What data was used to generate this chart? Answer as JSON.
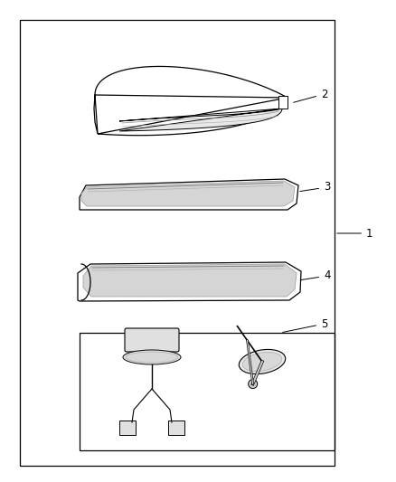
{
  "bg_color": "#ffffff",
  "line_color": "#000000",
  "label_fontsize": 8.5,
  "lw": 0.9
}
